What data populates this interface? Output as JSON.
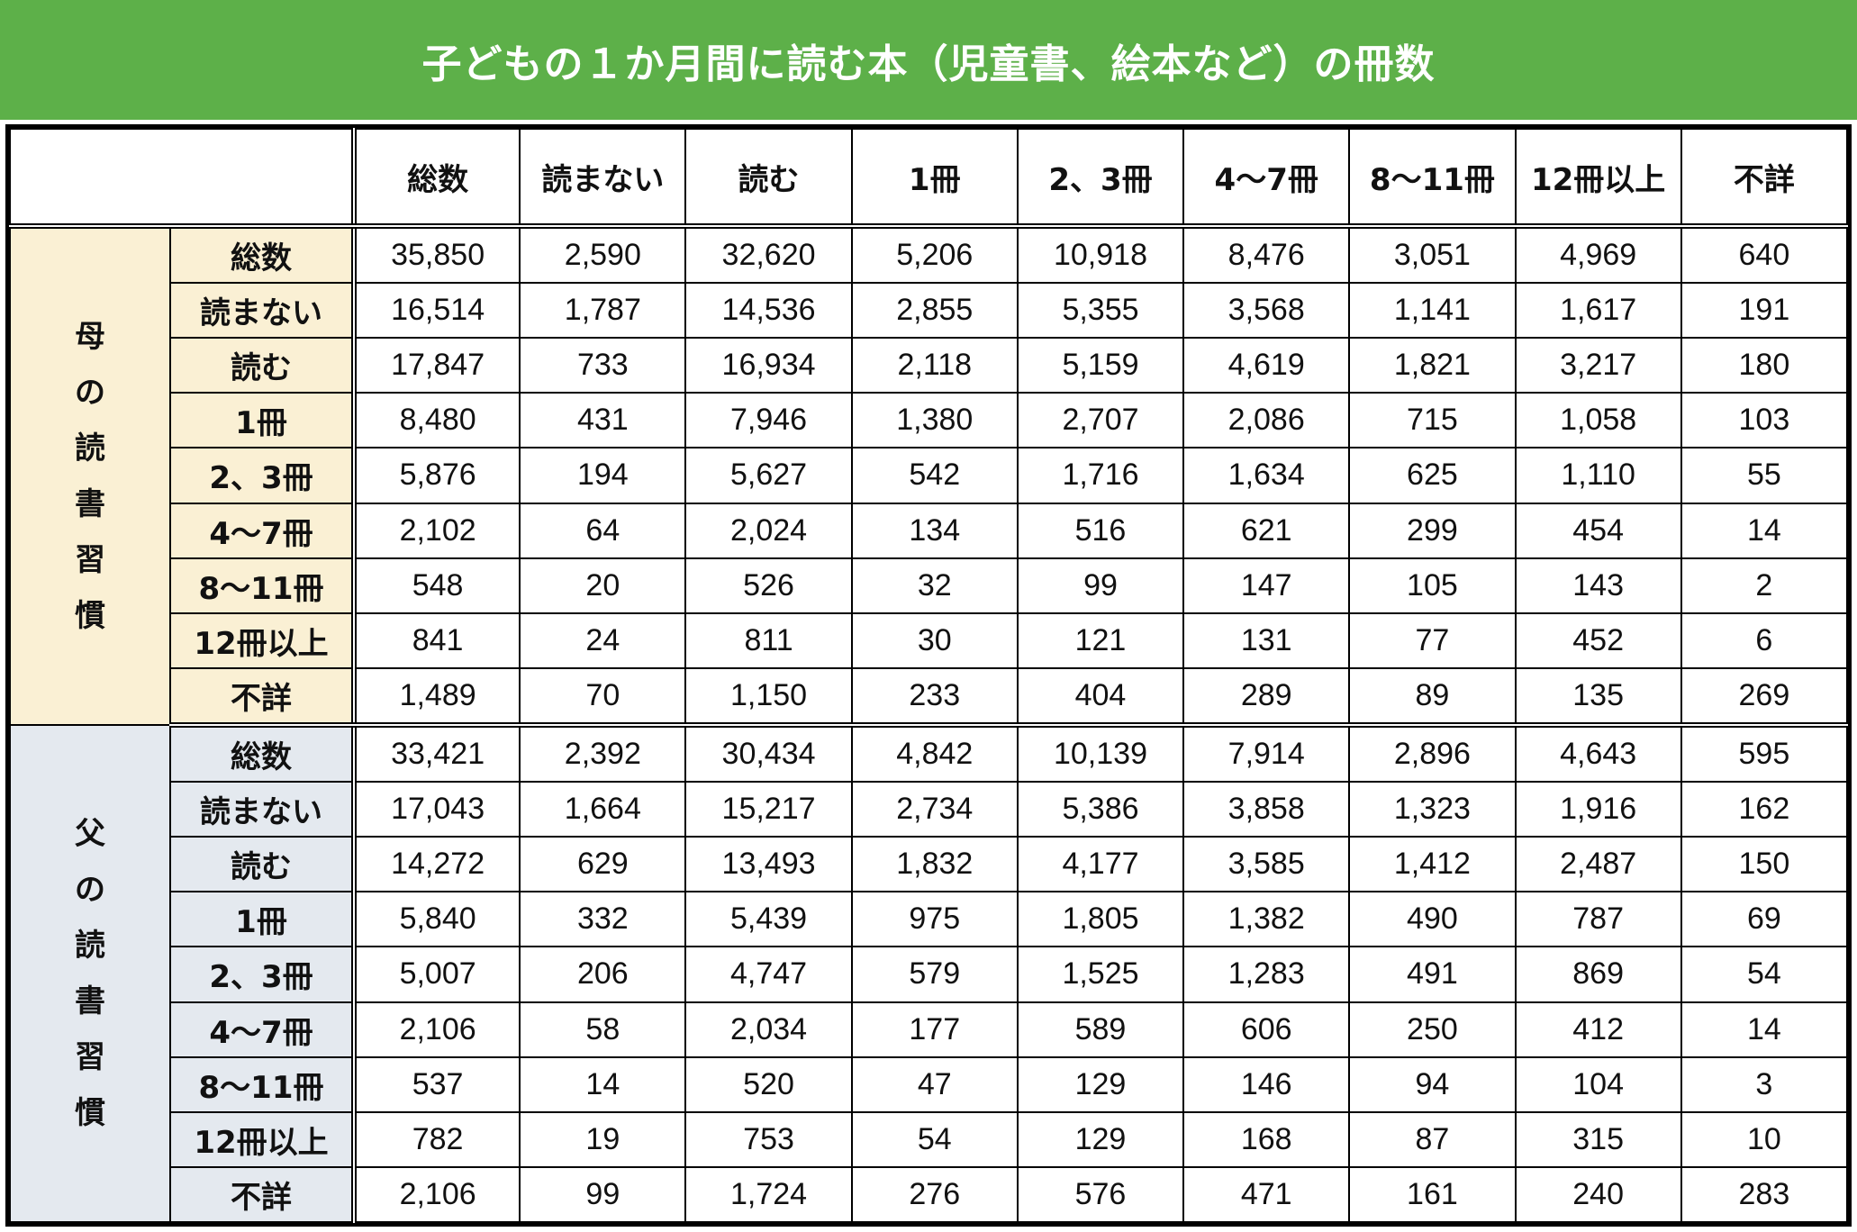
{
  "title": "子どもの１か月間に読む本（児童書、絵本など）の冊数",
  "columns": [
    "総数",
    "読まない",
    "読む",
    "1冊",
    "2、3冊",
    "4〜7冊",
    "8〜11冊",
    "12冊以上",
    "不詳"
  ],
  "groups": [
    {
      "label_chars": [
        "母",
        "の",
        "読",
        "書",
        "習",
        "慣"
      ],
      "rows": [
        {
          "label": "総数",
          "values": [
            "35,850",
            "2,590",
            "32,620",
            "5,206",
            "10,918",
            "8,476",
            "3,051",
            "4,969",
            "640"
          ]
        },
        {
          "label": "読まない",
          "values": [
            "16,514",
            "1,787",
            "14,536",
            "2,855",
            "5,355",
            "3,568",
            "1,141",
            "1,617",
            "191"
          ]
        },
        {
          "label": "読む",
          "values": [
            "17,847",
            "733",
            "16,934",
            "2,118",
            "5,159",
            "4,619",
            "1,821",
            "3,217",
            "180"
          ]
        },
        {
          "label": "1冊",
          "values": [
            "8,480",
            "431",
            "7,946",
            "1,380",
            "2,707",
            "2,086",
            "715",
            "1,058",
            "103"
          ]
        },
        {
          "label": "2、3冊",
          "values": [
            "5,876",
            "194",
            "5,627",
            "542",
            "1,716",
            "1,634",
            "625",
            "1,110",
            "55"
          ]
        },
        {
          "label": "4〜7冊",
          "values": [
            "2,102",
            "64",
            "2,024",
            "134",
            "516",
            "621",
            "299",
            "454",
            "14"
          ]
        },
        {
          "label": "8〜11冊",
          "values": [
            "548",
            "20",
            "526",
            "32",
            "99",
            "147",
            "105",
            "143",
            "2"
          ]
        },
        {
          "label": "12冊以上",
          "values": [
            "841",
            "24",
            "811",
            "30",
            "121",
            "131",
            "77",
            "452",
            "6"
          ]
        },
        {
          "label": "不詳",
          "values": [
            "1,489",
            "70",
            "1,150",
            "233",
            "404",
            "289",
            "89",
            "135",
            "269"
          ]
        }
      ]
    },
    {
      "label_chars": [
        "父",
        "の",
        "読",
        "書",
        "習",
        "慣"
      ],
      "rows": [
        {
          "label": "総数",
          "values": [
            "33,421",
            "2,392",
            "30,434",
            "4,842",
            "10,139",
            "7,914",
            "2,896",
            "4,643",
            "595"
          ]
        },
        {
          "label": "読まない",
          "values": [
            "17,043",
            "1,664",
            "15,217",
            "2,734",
            "5,386",
            "3,858",
            "1,323",
            "1,916",
            "162"
          ]
        },
        {
          "label": "読む",
          "values": [
            "14,272",
            "629",
            "13,493",
            "1,832",
            "4,177",
            "3,585",
            "1,412",
            "2,487",
            "150"
          ]
        },
        {
          "label": "1冊",
          "values": [
            "5,840",
            "332",
            "5,439",
            "975",
            "1,805",
            "1,382",
            "490",
            "787",
            "69"
          ]
        },
        {
          "label": "2、3冊",
          "values": [
            "5,007",
            "206",
            "4,747",
            "579",
            "1,525",
            "1,283",
            "491",
            "869",
            "54"
          ]
        },
        {
          "label": "4〜7冊",
          "values": [
            "2,106",
            "58",
            "2,034",
            "177",
            "589",
            "606",
            "250",
            "412",
            "14"
          ]
        },
        {
          "label": "8〜11冊",
          "values": [
            "537",
            "14",
            "520",
            "47",
            "129",
            "146",
            "94",
            "104",
            "3"
          ]
        },
        {
          "label": "12冊以上",
          "values": [
            "782",
            "19",
            "753",
            "54",
            "129",
            "168",
            "87",
            "315",
            "10"
          ]
        },
        {
          "label": "不詳",
          "values": [
            "2,106",
            "99",
            "1,724",
            "276",
            "576",
            "471",
            "161",
            "240",
            "283"
          ]
        }
      ]
    }
  ],
  "colors": {
    "title_bg": "#5db049",
    "mother_bg": "#faf0d4",
    "father_bg": "#e4e9ef"
  }
}
